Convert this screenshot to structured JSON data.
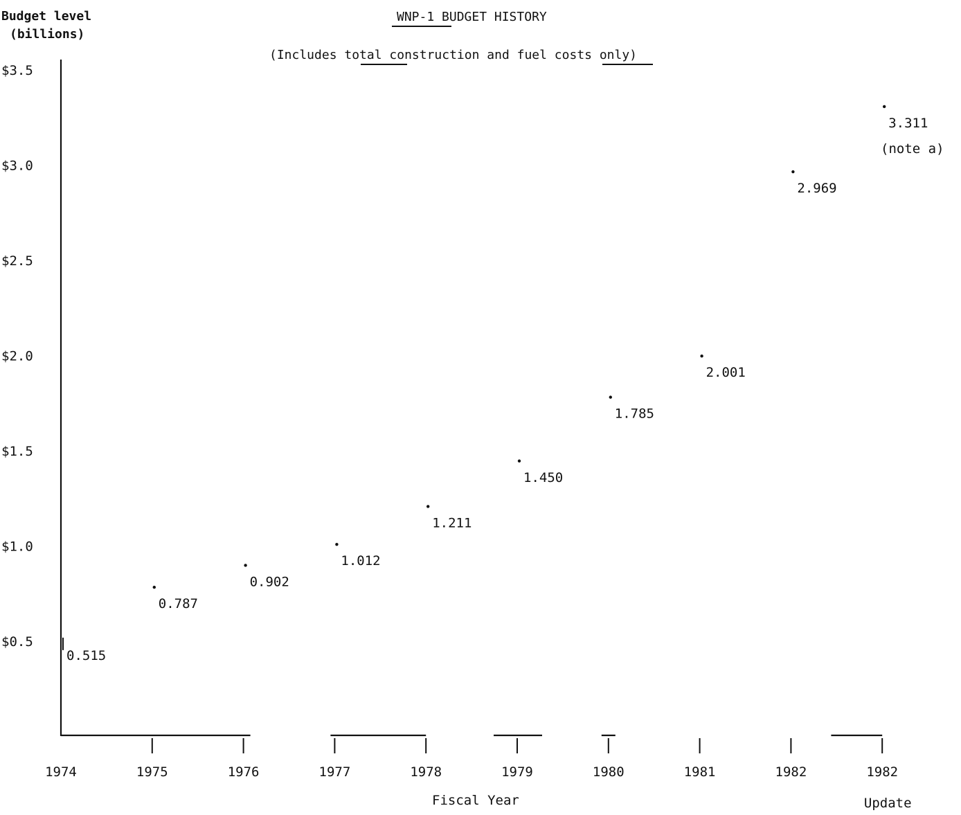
{
  "chart_data": {
    "type": "scatter",
    "title": "WNP-1 BUDGET HISTORY",
    "subtitle": "(Includes total construction and fuel costs only)",
    "ylabel": [
      "Budget level",
      "(billions)"
    ],
    "xlabel": "Fiscal Year",
    "ylim": [
      0.5,
      3.5
    ],
    "y_ticks": [
      "$0.5",
      "$1.0",
      "$1.5",
      "$2.0",
      "$2.5",
      "$3.0",
      "$3.5"
    ],
    "categories": [
      "1974",
      "1975",
      "1976",
      "1977",
      "1978",
      "1979",
      "1980",
      "1981",
      "1982",
      "1982"
    ],
    "category_sublabels": [
      "",
      "",
      "",
      "",
      "",
      "",
      "",
      "",
      "",
      "Update"
    ],
    "values": [
      0.515,
      0.787,
      0.902,
      1.012,
      1.211,
      1.45,
      1.785,
      2.001,
      2.969,
      3.311
    ],
    "data_labels": [
      "0.515",
      "0.787",
      "0.902",
      "1.012",
      "1.211",
      "1.450",
      "1.785",
      "2.001",
      "2.969",
      "3.311"
    ],
    "annotations": [
      "(note a)"
    ],
    "grid": false,
    "legend": "none"
  }
}
